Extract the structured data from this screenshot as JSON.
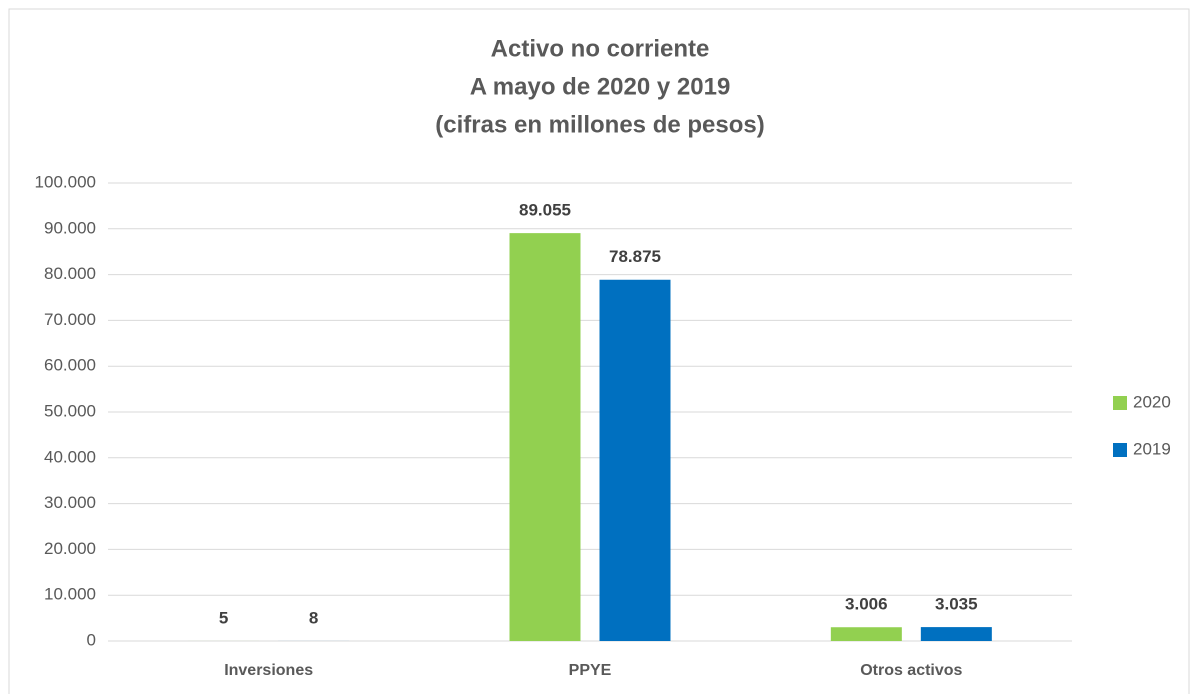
{
  "chart_data": {
    "type": "bar",
    "title": [
      "Activo no corriente",
      "A mayo de 2020 y 2019",
      "(cifras en millones de pesos)"
    ],
    "categories": [
      "Inversiones",
      "PPYE",
      "Otros activos"
    ],
    "series": [
      {
        "name": "2020",
        "color": "#92d050",
        "values": [
          5,
          89055,
          3006
        ],
        "value_labels": [
          "5",
          "89.055",
          "3.006"
        ]
      },
      {
        "name": "2019",
        "color": "#0070c0",
        "values": [
          8,
          78875,
          3035
        ],
        "value_labels": [
          "8",
          "78.875",
          "3.035"
        ]
      }
    ],
    "ylim": [
      0,
      100000
    ],
    "yticks": [
      0,
      {
        "value": 10000,
        "label": "10.000"
      },
      {
        "value": 20000,
        "label": "20.000"
      },
      {
        "value": 30000,
        "label": "30.000"
      },
      {
        "value": 40000,
        "label": "40.000"
      },
      {
        "value": 50000,
        "label": "50.000"
      },
      {
        "value": 60000,
        "label": "60.000"
      },
      {
        "value": 70000,
        "label": "70.000"
      },
      {
        "value": 80000,
        "label": "80.000"
      },
      {
        "value": 90000,
        "label": "90.000"
      },
      {
        "value": 100000,
        "label": "100.000"
      }
    ],
    "grid": true,
    "legend": "right"
  }
}
